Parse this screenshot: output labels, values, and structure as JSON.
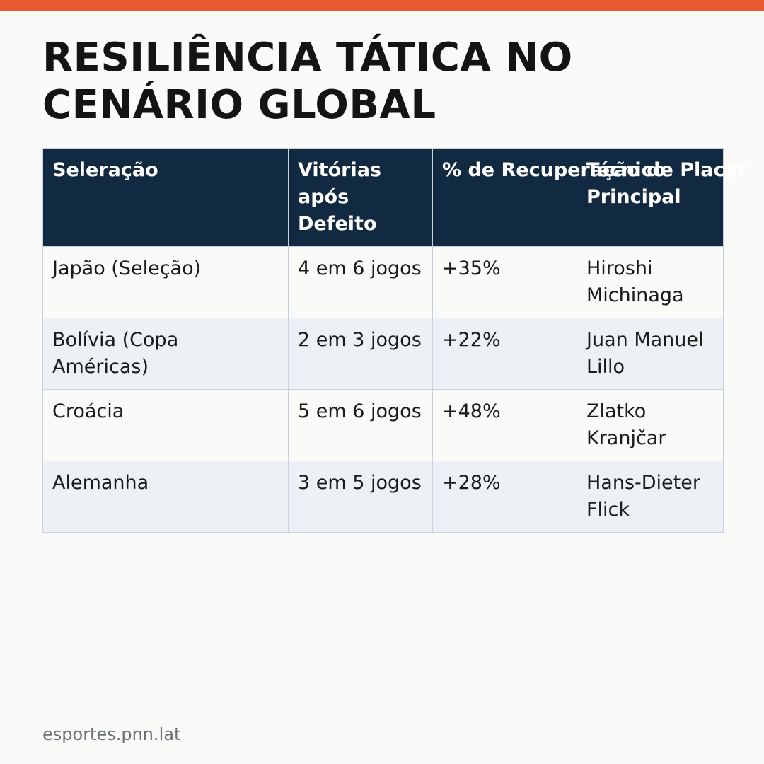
{
  "colors": {
    "accent": "#e85b30",
    "header_bg": "#122942",
    "row_alt_bg": "#edf1f5",
    "border": "#c9d1dc"
  },
  "title": "RESILIÊNCIA TÁTICA NO CENÁRIO GLOBAL",
  "table": {
    "headers": [
      "Seleração",
      "Vitórias após Defeito",
      "% de Recuperação de Placar",
      "Técnico Principal"
    ],
    "rows": [
      [
        "Japão (Seleção)",
        "4 em 6 jogos",
        "+35%",
        "Hiroshi Michinaga"
      ],
      [
        "Bolívia (Copa Américas)",
        "2 em 3 jogos",
        "+22%",
        "Juan Manuel Lillo"
      ],
      [
        "Croácia",
        "5 em 6 jogos",
        "+48%",
        "Zlatko Kranjčar"
      ],
      [
        "Alemanha",
        "3 em 5 jogos",
        "+28%",
        "Hans-Dieter Flick"
      ]
    ]
  },
  "footer": "esportes.pnn.lat"
}
